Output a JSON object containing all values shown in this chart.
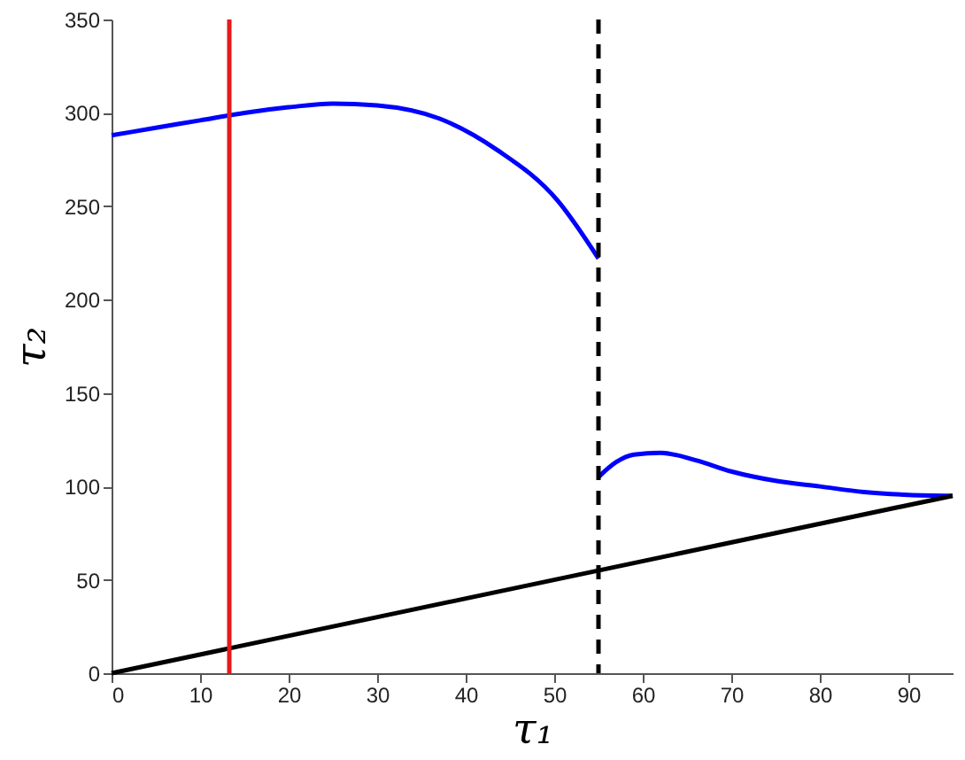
{
  "chart_data": {
    "type": "line",
    "xlabel": "τ₁",
    "ylabel": "τ₂",
    "xlim": [
      0,
      95
    ],
    "ylim": [
      0,
      350
    ],
    "xticks": [
      0,
      10,
      20,
      30,
      40,
      50,
      60,
      70,
      80,
      90
    ],
    "yticks": [
      0,
      50,
      100,
      150,
      200,
      250,
      300,
      350
    ],
    "grid": false,
    "line_style": "solid",
    "marker": "none",
    "series": [
      {
        "color": "#0000ff",
        "x": [
          0,
          5,
          10,
          15,
          20,
          25,
          30,
          37,
          43.6,
          50.4,
          55
        ],
        "values": [
          288,
          292,
          296,
          300,
          303,
          305,
          304,
          297,
          280,
          253,
          222
        ]
      },
      {
        "color": "#0000ff",
        "x": [
          55,
          57,
          59,
          62,
          66,
          70,
          75,
          80,
          85,
          90,
          95
        ],
        "values": [
          105,
          113,
          117,
          118,
          114,
          108,
          103,
          100,
          97,
          95.5,
          95
        ]
      },
      {
        "color": "#000000",
        "x": [
          0,
          95
        ],
        "values": [
          0,
          95
        ]
      }
    ],
    "ref_lines": [
      {
        "axis": "x",
        "value": 13.3,
        "color": "#e41a1c",
        "line_style": "solid"
      },
      {
        "axis": "x",
        "value": 55,
        "color": "#000000",
        "line_style": "dashed"
      }
    ]
  }
}
